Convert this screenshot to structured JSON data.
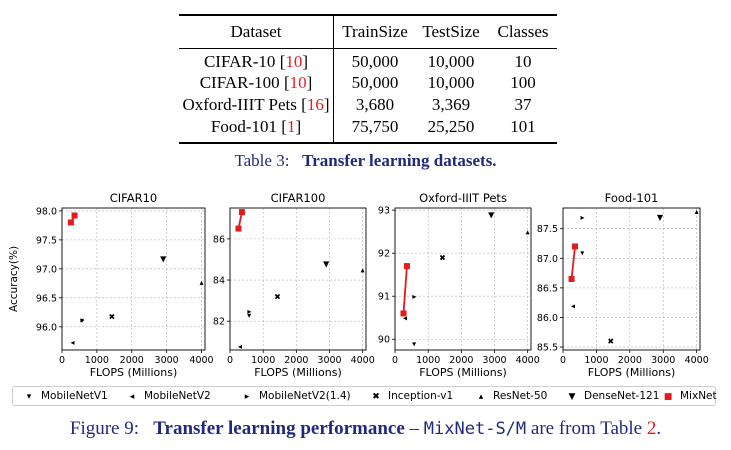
{
  "table": {
    "headers": [
      "Dataset",
      "TrainSize",
      "TestSize",
      "Classes"
    ],
    "rows": [
      {
        "name": "CIFAR-10",
        "ref": "10",
        "train": "50,000",
        "test": "10,000",
        "classes": "10"
      },
      {
        "name": "CIFAR-100",
        "ref": "10",
        "train": "50,000",
        "test": "10,000",
        "classes": "100"
      },
      {
        "name": "Oxford-IIIT Pets",
        "ref": "16",
        "train": "3,680",
        "test": "3,369",
        "classes": "37"
      },
      {
        "name": "Food-101",
        "ref": "1",
        "train": "75,750",
        "test": "25,250",
        "classes": "101"
      }
    ],
    "caption_prefix": "Table 3:",
    "caption_title": "Transfer learning datasets."
  },
  "figure": {
    "caption_prefix": "Figure 9:",
    "caption_title": "Transfer learning performance",
    "caption_dash": "–",
    "caption_code": "MixNet-S/M",
    "caption_suffix": "are from Table",
    "caption_ref": "2",
    "caption_end": "."
  },
  "legend": [
    {
      "label": "MobileNetV1",
      "marker": "▾"
    },
    {
      "label": "MobileNetV2",
      "marker": "◂"
    },
    {
      "label": "MobileNetV2(1.4)",
      "marker": "▸"
    },
    {
      "label": "Inception-v1",
      "marker": "✖"
    },
    {
      "label": "ResNet-50",
      "marker": "▴"
    },
    {
      "label": "DenseNet-121",
      "marker": "▼"
    },
    {
      "label": "MixNet",
      "marker": "■"
    }
  ],
  "colors": {
    "accent": "#e41a1c",
    "caption": "#1f2a7a"
  },
  "chart_data": [
    {
      "type": "scatter",
      "title": "CIFAR10",
      "xlabel": "FLOPS (Millions)",
      "ylabel": "Accuracy(%)",
      "xlim": [
        0,
        4100
      ],
      "ylim": [
        95.6,
        98.05
      ],
      "xticks": [
        0,
        1000,
        2000,
        3000,
        4000
      ],
      "yticks": [
        96.0,
        96.5,
        97.0,
        97.5,
        98.0
      ],
      "ytick_labels": [
        "96.0",
        "96.5",
        "97.0",
        "97.5",
        "98.0"
      ],
      "grid": true,
      "points": [
        {
          "model": "MobileNetV1",
          "x": 575,
          "y": 96.12
        },
        {
          "model": "MobileNetV2",
          "x": 300,
          "y": 95.74
        },
        {
          "model": "MobileNetV2(1.4)",
          "x": 585,
          "y": 96.13
        },
        {
          "model": "Inception-v1",
          "x": 1430,
          "y": 96.18
        },
        {
          "model": "ResNet-50",
          "x": 4000,
          "y": 96.77
        },
        {
          "model": "DenseNet-121",
          "x": 2900,
          "y": 97.18
        }
      ],
      "mixnet": [
        {
          "x": 256,
          "y": 97.8
        },
        {
          "x": 360,
          "y": 97.92
        }
      ]
    },
    {
      "type": "scatter",
      "title": "CIFAR100",
      "xlabel": "FLOPS (Millions)",
      "ylabel": "",
      "xlim": [
        0,
        4100
      ],
      "ylim": [
        80.6,
        87.5
      ],
      "xticks": [
        0,
        1000,
        2000,
        3000,
        4000
      ],
      "yticks": [
        82,
        84,
        86
      ],
      "ytick_labels": [
        "82",
        "84",
        "86"
      ],
      "grid": true,
      "points": [
        {
          "model": "MobileNetV1",
          "x": 575,
          "y": 82.3
        },
        {
          "model": "MobileNetV2",
          "x": 300,
          "y": 80.8
        },
        {
          "model": "MobileNetV2(1.4)",
          "x": 585,
          "y": 82.5
        },
        {
          "model": "Inception-v1",
          "x": 1430,
          "y": 83.2
        },
        {
          "model": "ResNet-50",
          "x": 4000,
          "y": 84.5
        },
        {
          "model": "DenseNet-121",
          "x": 2900,
          "y": 84.8
        }
      ],
      "mixnet": [
        {
          "x": 256,
          "y": 86.5
        },
        {
          "x": 360,
          "y": 87.3
        }
      ]
    },
    {
      "type": "scatter",
      "title": "Oxford-IIIT Pets",
      "xlabel": "FLOPS (Millions)",
      "ylabel": "",
      "xlim": [
        0,
        4100
      ],
      "ylim": [
        89.75,
        93.05
      ],
      "xticks": [
        0,
        1000,
        2000,
        3000,
        4000
      ],
      "yticks": [
        90,
        91,
        92,
        93
      ],
      "ytick_labels": [
        "90",
        "91",
        "92",
        "93"
      ],
      "grid": true,
      "points": [
        {
          "model": "MobileNetV1",
          "x": 575,
          "y": 89.9
        },
        {
          "model": "MobileNetV2",
          "x": 300,
          "y": 90.5
        },
        {
          "model": "MobileNetV2(1.4)",
          "x": 585,
          "y": 91.0
        },
        {
          "model": "Inception-v1",
          "x": 1430,
          "y": 91.9
        },
        {
          "model": "ResNet-50",
          "x": 4000,
          "y": 92.5
        },
        {
          "model": "DenseNet-121",
          "x": 2900,
          "y": 92.9
        }
      ],
      "mixnet": [
        {
          "x": 256,
          "y": 90.6
        },
        {
          "x": 360,
          "y": 91.7
        }
      ]
    },
    {
      "type": "scatter",
      "title": "Food-101",
      "xlabel": "FLOPS (Millions)",
      "ylabel": "",
      "xlim": [
        0,
        4100
      ],
      "ylim": [
        85.45,
        87.85
      ],
      "xticks": [
        0,
        1000,
        2000,
        3000,
        4000
      ],
      "yticks": [
        85.5,
        86.0,
        86.5,
        87.0,
        87.5
      ],
      "ytick_labels": [
        "85.5",
        "86.0",
        "86.5",
        "87.0",
        "87.5"
      ],
      "grid": true,
      "points": [
        {
          "model": "MobileNetV1",
          "x": 575,
          "y": 87.1
        },
        {
          "model": "MobileNetV2",
          "x": 300,
          "y": 86.2
        },
        {
          "model": "MobileNetV2(1.4)",
          "x": 585,
          "y": 87.7
        },
        {
          "model": "Inception-v1",
          "x": 1430,
          "y": 85.6
        },
        {
          "model": "ResNet-50",
          "x": 4000,
          "y": 87.8
        },
        {
          "model": "DenseNet-121",
          "x": 2900,
          "y": 87.7
        }
      ],
      "mixnet": [
        {
          "x": 256,
          "y": 86.65
        },
        {
          "x": 360,
          "y": 87.2
        }
      ]
    }
  ]
}
